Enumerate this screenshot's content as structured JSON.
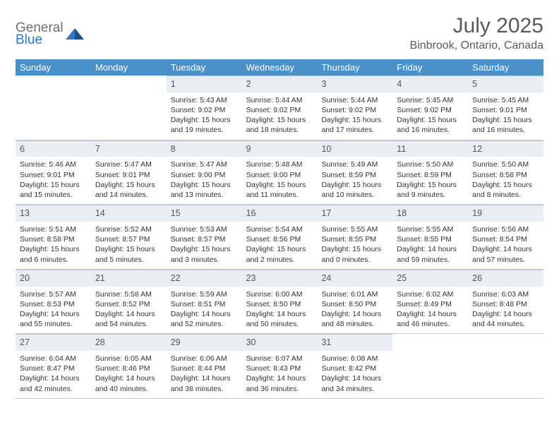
{
  "logo": {
    "general": "General",
    "blue": "Blue"
  },
  "title": "July 2025",
  "location": "Binbrook, Ontario, Canada",
  "day_header_bg": "#4a90c9",
  "day_header_text": "#ffffff",
  "daynum_bg": "#e8eef3",
  "days": [
    "Sunday",
    "Monday",
    "Tuesday",
    "Wednesday",
    "Thursday",
    "Friday",
    "Saturday"
  ],
  "weeks": [
    [
      null,
      null,
      {
        "n": "1",
        "sr": "Sunrise: 5:43 AM",
        "ss": "Sunset: 9:02 PM",
        "d1": "Daylight: 15 hours",
        "d2": "and 19 minutes."
      },
      {
        "n": "2",
        "sr": "Sunrise: 5:44 AM",
        "ss": "Sunset: 9:02 PM",
        "d1": "Daylight: 15 hours",
        "d2": "and 18 minutes."
      },
      {
        "n": "3",
        "sr": "Sunrise: 5:44 AM",
        "ss": "Sunset: 9:02 PM",
        "d1": "Daylight: 15 hours",
        "d2": "and 17 minutes."
      },
      {
        "n": "4",
        "sr": "Sunrise: 5:45 AM",
        "ss": "Sunset: 9:02 PM",
        "d1": "Daylight: 15 hours",
        "d2": "and 16 minutes."
      },
      {
        "n": "5",
        "sr": "Sunrise: 5:45 AM",
        "ss": "Sunset: 9:01 PM",
        "d1": "Daylight: 15 hours",
        "d2": "and 16 minutes."
      }
    ],
    [
      {
        "n": "6",
        "sr": "Sunrise: 5:46 AM",
        "ss": "Sunset: 9:01 PM",
        "d1": "Daylight: 15 hours",
        "d2": "and 15 minutes."
      },
      {
        "n": "7",
        "sr": "Sunrise: 5:47 AM",
        "ss": "Sunset: 9:01 PM",
        "d1": "Daylight: 15 hours",
        "d2": "and 14 minutes."
      },
      {
        "n": "8",
        "sr": "Sunrise: 5:47 AM",
        "ss": "Sunset: 9:00 PM",
        "d1": "Daylight: 15 hours",
        "d2": "and 13 minutes."
      },
      {
        "n": "9",
        "sr": "Sunrise: 5:48 AM",
        "ss": "Sunset: 9:00 PM",
        "d1": "Daylight: 15 hours",
        "d2": "and 11 minutes."
      },
      {
        "n": "10",
        "sr": "Sunrise: 5:49 AM",
        "ss": "Sunset: 8:59 PM",
        "d1": "Daylight: 15 hours",
        "d2": "and 10 minutes."
      },
      {
        "n": "11",
        "sr": "Sunrise: 5:50 AM",
        "ss": "Sunset: 8:59 PM",
        "d1": "Daylight: 15 hours",
        "d2": "and 9 minutes."
      },
      {
        "n": "12",
        "sr": "Sunrise: 5:50 AM",
        "ss": "Sunset: 8:58 PM",
        "d1": "Daylight: 15 hours",
        "d2": "and 8 minutes."
      }
    ],
    [
      {
        "n": "13",
        "sr": "Sunrise: 5:51 AM",
        "ss": "Sunset: 8:58 PM",
        "d1": "Daylight: 15 hours",
        "d2": "and 6 minutes."
      },
      {
        "n": "14",
        "sr": "Sunrise: 5:52 AM",
        "ss": "Sunset: 8:57 PM",
        "d1": "Daylight: 15 hours",
        "d2": "and 5 minutes."
      },
      {
        "n": "15",
        "sr": "Sunrise: 5:53 AM",
        "ss": "Sunset: 8:57 PM",
        "d1": "Daylight: 15 hours",
        "d2": "and 3 minutes."
      },
      {
        "n": "16",
        "sr": "Sunrise: 5:54 AM",
        "ss": "Sunset: 8:56 PM",
        "d1": "Daylight: 15 hours",
        "d2": "and 2 minutes."
      },
      {
        "n": "17",
        "sr": "Sunrise: 5:55 AM",
        "ss": "Sunset: 8:55 PM",
        "d1": "Daylight: 15 hours",
        "d2": "and 0 minutes."
      },
      {
        "n": "18",
        "sr": "Sunrise: 5:55 AM",
        "ss": "Sunset: 8:55 PM",
        "d1": "Daylight: 14 hours",
        "d2": "and 59 minutes."
      },
      {
        "n": "19",
        "sr": "Sunrise: 5:56 AM",
        "ss": "Sunset: 8:54 PM",
        "d1": "Daylight: 14 hours",
        "d2": "and 57 minutes."
      }
    ],
    [
      {
        "n": "20",
        "sr": "Sunrise: 5:57 AM",
        "ss": "Sunset: 8:53 PM",
        "d1": "Daylight: 14 hours",
        "d2": "and 55 minutes."
      },
      {
        "n": "21",
        "sr": "Sunrise: 5:58 AM",
        "ss": "Sunset: 8:52 PM",
        "d1": "Daylight: 14 hours",
        "d2": "and 54 minutes."
      },
      {
        "n": "22",
        "sr": "Sunrise: 5:59 AM",
        "ss": "Sunset: 8:51 PM",
        "d1": "Daylight: 14 hours",
        "d2": "and 52 minutes."
      },
      {
        "n": "23",
        "sr": "Sunrise: 6:00 AM",
        "ss": "Sunset: 8:50 PM",
        "d1": "Daylight: 14 hours",
        "d2": "and 50 minutes."
      },
      {
        "n": "24",
        "sr": "Sunrise: 6:01 AM",
        "ss": "Sunset: 8:50 PM",
        "d1": "Daylight: 14 hours",
        "d2": "and 48 minutes."
      },
      {
        "n": "25",
        "sr": "Sunrise: 6:02 AM",
        "ss": "Sunset: 8:49 PM",
        "d1": "Daylight: 14 hours",
        "d2": "and 46 minutes."
      },
      {
        "n": "26",
        "sr": "Sunrise: 6:03 AM",
        "ss": "Sunset: 8:48 PM",
        "d1": "Daylight: 14 hours",
        "d2": "and 44 minutes."
      }
    ],
    [
      {
        "n": "27",
        "sr": "Sunrise: 6:04 AM",
        "ss": "Sunset: 8:47 PM",
        "d1": "Daylight: 14 hours",
        "d2": "and 42 minutes."
      },
      {
        "n": "28",
        "sr": "Sunrise: 6:05 AM",
        "ss": "Sunset: 8:46 PM",
        "d1": "Daylight: 14 hours",
        "d2": "and 40 minutes."
      },
      {
        "n": "29",
        "sr": "Sunrise: 6:06 AM",
        "ss": "Sunset: 8:44 PM",
        "d1": "Daylight: 14 hours",
        "d2": "and 38 minutes."
      },
      {
        "n": "30",
        "sr": "Sunrise: 6:07 AM",
        "ss": "Sunset: 8:43 PM",
        "d1": "Daylight: 14 hours",
        "d2": "and 36 minutes."
      },
      {
        "n": "31",
        "sr": "Sunrise: 6:08 AM",
        "ss": "Sunset: 8:42 PM",
        "d1": "Daylight: 14 hours",
        "d2": "and 34 minutes."
      },
      null,
      null
    ]
  ]
}
